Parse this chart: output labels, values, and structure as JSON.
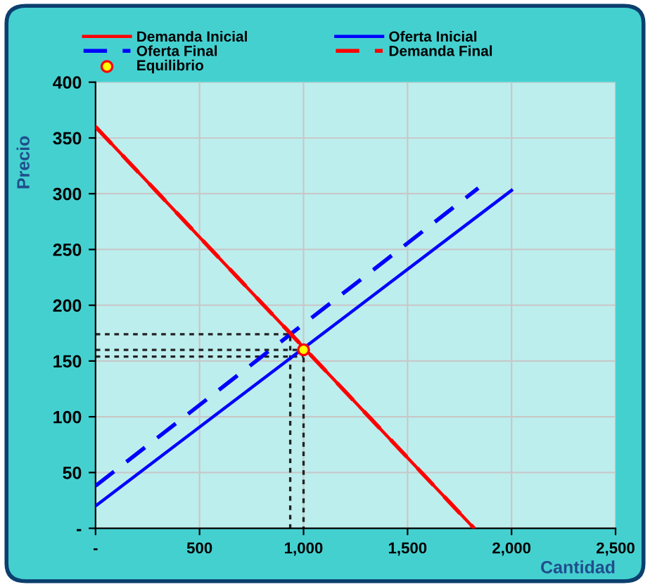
{
  "chart_data": {
    "type": "line",
    "xlabel": "Cantidad",
    "ylabel": "Precio",
    "xlim": [
      0,
      2500
    ],
    "xticks": [
      {
        "value": 0,
        "label": "-"
      },
      {
        "value": 500,
        "label": "500"
      },
      {
        "value": 1000,
        "label": "1,000"
      },
      {
        "value": 1500,
        "label": "1,500"
      },
      {
        "value": 2000,
        "label": "2,000"
      },
      {
        "value": 2500,
        "label": "2,500"
      }
    ],
    "ylim": [
      0,
      400
    ],
    "yticks": [
      {
        "value": 0,
        "label": "-"
      },
      50,
      100,
      150,
      200,
      250,
      300,
      350,
      400
    ],
    "grid": true,
    "legend": "top",
    "series": [
      {
        "name": "Demanda Inicial",
        "color": "#ff0000",
        "line_style": "solid",
        "x": [
          0,
          1820
        ],
        "values": [
          360,
          0
        ]
      },
      {
        "name": "Oferta Inicial",
        "color": "#0000ff",
        "line_style": "solid",
        "x": [
          0,
          2000
        ],
        "values": [
          20,
          303
        ]
      },
      {
        "name": "Oferta Final",
        "color": "#0000ff",
        "type": "line",
        "line_style": "dashed",
        "x": [
          0,
          1840
        ],
        "values": [
          38,
          305
        ]
      },
      {
        "name": "Demanda Final",
        "color": "#ff0000",
        "type": "line",
        "line_style": "dashed",
        "x": [
          0,
          1820
        ],
        "values": [
          360,
          0
        ]
      },
      {
        "name": "Equilibrio",
        "color": "#ffff00",
        "type": "scatter",
        "marker": "circle",
        "x": [
          1000
        ],
        "values": [
          160
        ]
      },
      {
        "color": "#222222",
        "type": "line",
        "line_style": "dotted",
        "x": [
          0,
          936,
          936
        ],
        "values": [
          174,
          174,
          0
        ]
      },
      {
        "color": "#222222",
        "type": "line",
        "line_style": "dotted",
        "x": [
          0,
          1000,
          1000
        ],
        "values": [
          160,
          160,
          0
        ]
      },
      {
        "color": "#222222",
        "type": "line",
        "line_style": "dotted",
        "x": [
          0,
          1000
        ],
        "values": [
          154,
          154
        ]
      }
    ]
  }
}
